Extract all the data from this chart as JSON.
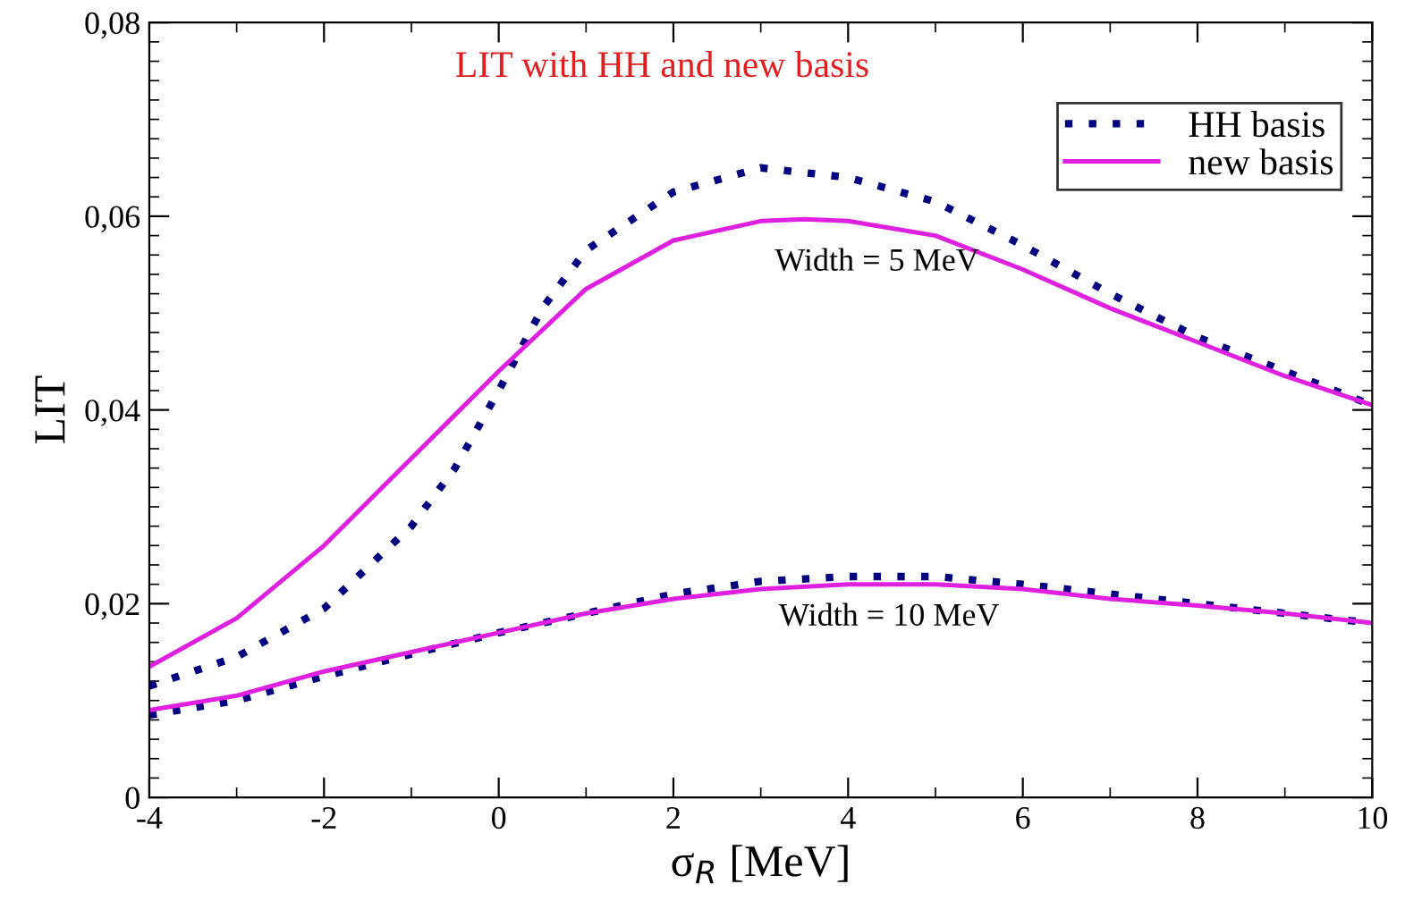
{
  "chart_data": {
    "type": "line",
    "title": "LIT with HH and new basis",
    "xlabel": "σ$_{R}$ [MeV]",
    "ylabel": "LIT",
    "xlim": [
      -4,
      10
    ],
    "xticks": [
      -4,
      -2,
      0,
      2,
      4,
      6,
      8,
      10
    ],
    "ylim": [
      0,
      0.08
    ],
    "yticks": [
      {
        "value": 0,
        "label": "0"
      },
      {
        "value": 0.02,
        "label": "0,02"
      },
      {
        "value": 0.04,
        "label": "0,04"
      },
      {
        "value": 0.06,
        "label": "0,06"
      },
      {
        "value": 0.08,
        "label": "0,08"
      }
    ],
    "grid": false,
    "legend": "top right",
    "annotations": [
      "Width = 5 MeV",
      "Width = 10 MeV"
    ],
    "series": [
      {
        "name": "HH basis",
        "color": "#000080",
        "line_style": "dotted",
        "x": [
          -4,
          -3,
          -2,
          -1,
          -0.5,
          0,
          0.5,
          1,
          2,
          3,
          4,
          5,
          6,
          7,
          8,
          9,
          10
        ],
        "values": [
          0.0115,
          0.0145,
          0.0195,
          0.028,
          0.034,
          0.042,
          0.0505,
          0.0565,
          0.0625,
          0.065,
          0.064,
          0.0615,
          0.057,
          0.052,
          0.0475,
          0.044,
          0.0405
        ]
      },
      {
        "name": "new basis",
        "color": "#e020e0",
        "line_style": "solid",
        "x": [
          -4,
          -3,
          -2,
          -1,
          0,
          1,
          2,
          3,
          3.5,
          4,
          5,
          6,
          7,
          8,
          9,
          10
        ],
        "values": [
          0.0135,
          0.0185,
          0.026,
          0.035,
          0.044,
          0.0525,
          0.0575,
          0.0595,
          0.0597,
          0.0595,
          0.058,
          0.0545,
          0.0505,
          0.047,
          0.0435,
          0.0405
        ]
      },
      {
        "color": "#000080",
        "line_style": "dotted",
        "x": [
          -4,
          -3,
          -2,
          -1,
          0,
          1,
          2,
          3,
          4,
          5,
          6,
          7,
          8,
          9,
          10
        ],
        "values": [
          0.0085,
          0.01,
          0.0125,
          0.0148,
          0.017,
          0.019,
          0.021,
          0.0223,
          0.0228,
          0.0228,
          0.022,
          0.021,
          0.02,
          0.019,
          0.018
        ]
      },
      {
        "color": "#e020e0",
        "line_style": "solid",
        "x": [
          -4,
          -3,
          -2,
          -1,
          0,
          1,
          2,
          3,
          4,
          5,
          6,
          7,
          8,
          9,
          10
        ],
        "values": [
          0.009,
          0.0105,
          0.013,
          0.015,
          0.017,
          0.019,
          0.0205,
          0.0215,
          0.022,
          0.022,
          0.0215,
          0.0205,
          0.0198,
          0.019,
          0.018
        ]
      }
    ]
  }
}
